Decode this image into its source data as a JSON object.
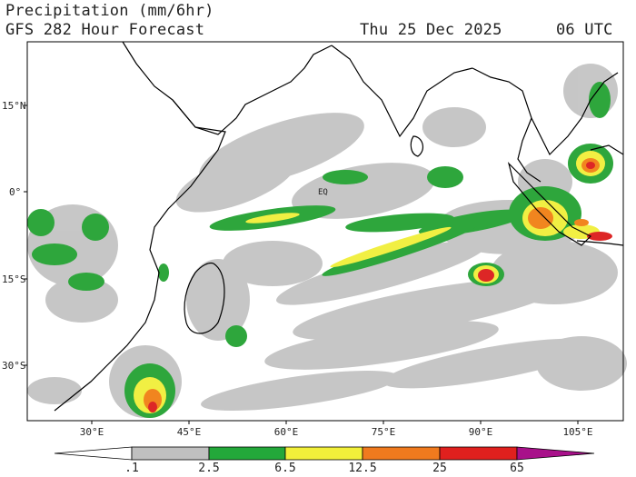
{
  "header": {
    "title": "Precipitation (mm/6hr)",
    "subtitle": "GFS 282 Hour Forecast",
    "date": "Thu 25 Dec 2025",
    "utc": "06 UTC"
  },
  "map": {
    "lat_ticks": [
      "15°N",
      "0°",
      "15°S",
      "30°S"
    ],
    "lon_ticks": [
      "30°E",
      "45°E",
      "60°E",
      "75°E",
      "90°E",
      "105°E"
    ],
    "label_eq": "EQ"
  },
  "colorbar": {
    "labels": [
      ".1",
      "2.5",
      "6.5",
      "12.5",
      "25",
      "65"
    ],
    "colors": [
      "#ffffff",
      "#c0c0c0",
      "#23a83a",
      "#f2f03a",
      "#f07a1e",
      "#e0201e",
      "#a8108a"
    ]
  },
  "legend_colors": {
    "light": "#c4c4c4",
    "moderate": "#2ea63c",
    "heavy": "#f1ef43",
    "very_heavy": "#f1851f",
    "extreme": "#dd2626"
  }
}
